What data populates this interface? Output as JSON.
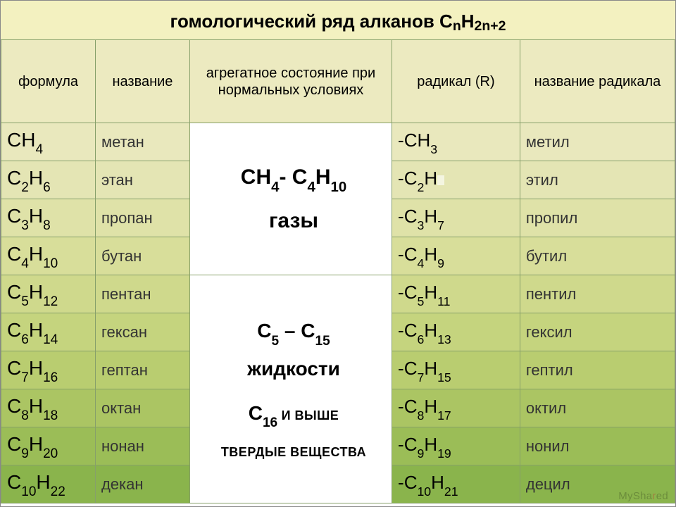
{
  "title_main": "гомологический ряд алканов ",
  "title_formula_base": "C",
  "title_formula_n": "n",
  "title_formula_H": "H",
  "title_formula_2n2": "2n+2",
  "headers": {
    "formula": "формула",
    "name": "название",
    "state": "агрегатное состояние при нормальных условиях",
    "radical": "радикал (R)",
    "rname": "название радикала"
  },
  "colors": {
    "title_bg": "#f3f1c0",
    "header_bg": "#eceac0",
    "rows": [
      "#e9e8bd",
      "#e4e5b4",
      "#dfe2a8",
      "#d8de9a",
      "#cfd98c",
      "#c5d47e",
      "#b9cd70",
      "#abc563",
      "#9bbd57",
      "#8ab44c"
    ],
    "border": "#87a06a",
    "state_bg": "#ffffff"
  },
  "state_block1_line1_a": "CH",
  "state_block1_line1_b": "4",
  "state_block1_line1_c": "- C",
  "state_block1_line1_d": "4",
  "state_block1_line1_e": "H",
  "state_block1_line1_f": "10",
  "state_block1_line2": "газы",
  "state_block2_line1_a": "C",
  "state_block2_line1_b": "5",
  "state_block2_line1_c": " – C",
  "state_block2_line1_d": "15",
  "state_block2_line2": "жидкости",
  "state_block2_line3_a": "C",
  "state_block2_line3_b": "16",
  "state_block2_line3_c": " И ВЫШЕ",
  "state_block2_line4": "ТВЕРДЫЕ ВЕЩЕСТВА",
  "rows": [
    {
      "f_pre": "CH",
      "f_sub": "4",
      "f_pre2": "",
      "f_sub2": "",
      "name": "метан",
      "r_pre": "-CH",
      "r_sub": "3",
      "r_pre2": "",
      "r_sub2": "",
      "rname": "метил"
    },
    {
      "f_pre": "C",
      "f_sub": "2",
      "f_pre2": "H",
      "f_sub2": "6",
      "name": "этан",
      "r_pre": "-C",
      "r_sub": "2",
      "r_pre2": "H",
      "r_sub2": "",
      "rname": "этил",
      "blip": true
    },
    {
      "f_pre": "C",
      "f_sub": "3",
      "f_pre2": "H",
      "f_sub2": "8",
      "name": "пропан",
      "r_pre": "-C",
      "r_sub": "3",
      "r_pre2": "H",
      "r_sub2": "7",
      "rname": "пропил"
    },
    {
      "f_pre": "C",
      "f_sub": "4",
      "f_pre2": "H",
      "f_sub2": "10",
      "name": "бутан",
      "r_pre": "-C",
      "r_sub": "4",
      "r_pre2": "H",
      "r_sub2": "9",
      "rname": "бутил"
    },
    {
      "f_pre": "C",
      "f_sub": "5",
      "f_pre2": "H",
      "f_sub2": "12",
      "name": "пентан",
      "r_pre": "-C",
      "r_sub": "5",
      "r_pre2": "H",
      "r_sub2": "11",
      "rname": "пентил"
    },
    {
      "f_pre": "C",
      "f_sub": "6",
      "f_pre2": "H",
      "f_sub2": "14",
      "name": "гексан",
      "r_pre": "-C",
      "r_sub": "6",
      "r_pre2": "H",
      "r_sub2": "13",
      "rname": "гексил"
    },
    {
      "f_pre": "C",
      "f_sub": "7",
      "f_pre2": "H",
      "f_sub2": "16",
      "name": "гептан",
      "r_pre": "-C",
      "r_sub": "7",
      "r_pre2": "H",
      "r_sub2": "15",
      "rname": "гептил"
    },
    {
      "f_pre": "C",
      "f_sub": "8",
      "f_pre2": "H",
      "f_sub2": "18",
      "name": "октан",
      "r_pre": "-C",
      "r_sub": "8",
      "r_pre2": "H",
      "r_sub2": "17",
      "rname": "октил"
    },
    {
      "f_pre": "C",
      "f_sub": "9",
      "f_pre2": "H",
      "f_sub2": "20",
      "name": "нонан",
      "r_pre": "-C",
      "r_sub": "9",
      "r_pre2": "H",
      "r_sub2": "19",
      "rname": "нонил"
    },
    {
      "f_pre": "C",
      "f_sub": "10",
      "f_pre2": "H",
      "f_sub2": "22",
      "name": "декан",
      "r_pre": "-C",
      "r_sub": "10",
      "r_pre2": "H",
      "r_sub2": "21",
      "rname": "децил"
    }
  ],
  "watermark_a": "MySha",
  "watermark_b": "r",
  "watermark_c": "ed"
}
